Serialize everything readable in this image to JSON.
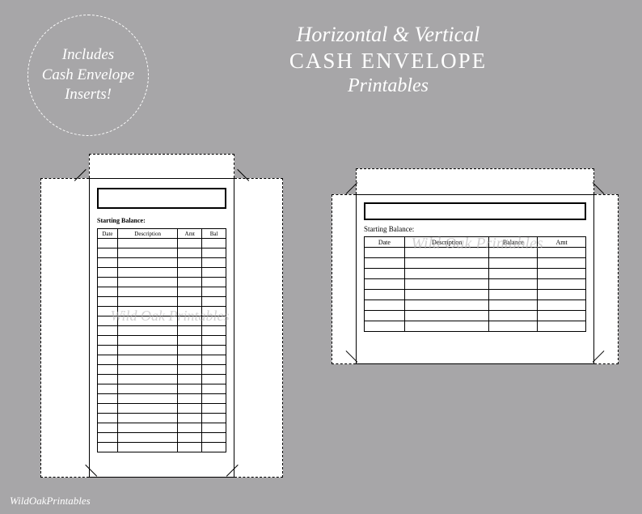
{
  "badge": {
    "line1": "Includes",
    "line2": "Cash Envelope",
    "line3": "Inserts!"
  },
  "title": {
    "line1": "Horizontal & Vertical",
    "line2": "CASH ENVELOPE",
    "line3": "Printables"
  },
  "vertical": {
    "starting_balance_label": "Starting Balance:",
    "columns": {
      "c1": "Date",
      "c2": "Description",
      "c3": "Amt",
      "c4": "Bal"
    },
    "rows": 22
  },
  "horizontal": {
    "starting_balance_label": "Starting Balance:",
    "columns": {
      "c1": "Date",
      "c2": "Description",
      "c3": "Balance",
      "c4": "Amt"
    },
    "rows": 8
  },
  "watermark": "Wild Oak Printables",
  "credit": "WildOakPrintables",
  "colors": {
    "background": "#a7a6a8",
    "paper": "#ffffff",
    "text_light": "#ffffff",
    "line": "#000000"
  }
}
